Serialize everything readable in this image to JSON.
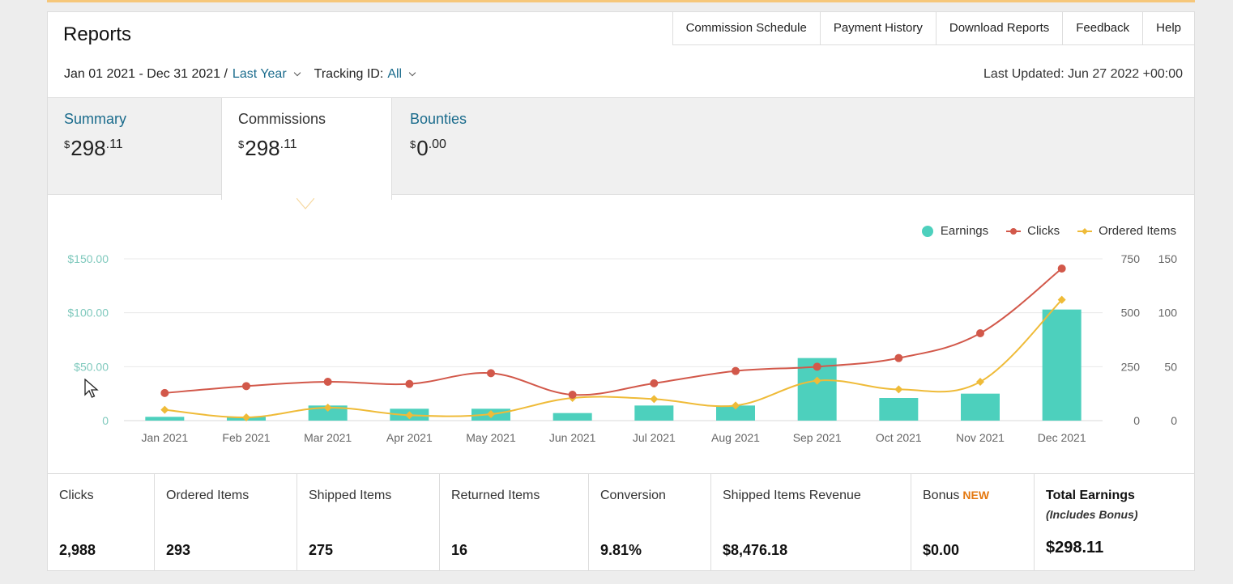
{
  "page": {
    "title": "Reports",
    "nav": [
      "Commission Schedule",
      "Payment History",
      "Download Reports",
      "Feedback",
      "Help"
    ],
    "date_range": "Jan 01 2021 - Dec 31 2021 /",
    "period": "Last Year",
    "tracking_label": "Tracking ID:",
    "tracking_value": "All",
    "last_updated": "Last Updated: Jun 27 2022 +00:00"
  },
  "tabs": [
    {
      "label": "Summary",
      "currency": "$",
      "whole": "298",
      "cents": ".11"
    },
    {
      "label": "Commissions",
      "currency": "$",
      "whole": "298",
      "cents": ".11"
    },
    {
      "label": "Bounties",
      "currency": "$",
      "whole": "0",
      "cents": ".00"
    }
  ],
  "colors": {
    "earnings": "#4dd0bd",
    "clicks": "#d2584a",
    "ordered": "#efbb38",
    "link": "#1a6b8c",
    "badge": "#e47911"
  },
  "chart_data": {
    "type": "bar",
    "categories": [
      "Jan 2021",
      "Feb 2021",
      "Mar 2021",
      "Apr 2021",
      "May 2021",
      "Jun 2021",
      "Jul 2021",
      "Aug 2021",
      "Sep 2021",
      "Oct 2021",
      "Nov 2021",
      "Dec 2021"
    ],
    "series": [
      {
        "name": "Earnings",
        "type": "bar",
        "axis": "left",
        "values": [
          3.5,
          3.5,
          14,
          11,
          11,
          7,
          14,
          14,
          58,
          21,
          25,
          103
        ]
      },
      {
        "name": "Clicks",
        "type": "line",
        "axis": "right1",
        "values": [
          128,
          160,
          180,
          170,
          220,
          120,
          173,
          230,
          250,
          290,
          405,
          705
        ]
      },
      {
        "name": "Ordered Items",
        "type": "line",
        "axis": "right2",
        "values": [
          10,
          3,
          12,
          5,
          6,
          21,
          20,
          14,
          37,
          29,
          36,
          112
        ]
      }
    ],
    "left_axis": {
      "ticks": [
        "$150.00",
        "$100.00",
        "$50.00",
        "0"
      ],
      "range": [
        0,
        150
      ]
    },
    "right_axis_1": {
      "ticks": [
        "750",
        "500",
        "250",
        "0"
      ],
      "range": [
        0,
        750
      ]
    },
    "right_axis_2": {
      "ticks": [
        "150",
        "100",
        "50",
        "0"
      ],
      "range": [
        0,
        150
      ]
    },
    "legend": "top-right",
    "grid": true
  },
  "stats": [
    {
      "label": "Clicks",
      "value": "2,988"
    },
    {
      "label": "Ordered Items",
      "value": "293"
    },
    {
      "label": "Shipped Items",
      "value": "275"
    },
    {
      "label": "Returned Items",
      "value": "16"
    },
    {
      "label": "Conversion",
      "value": "9.81%"
    },
    {
      "label": "Shipped Items Revenue",
      "value": "$8,476.18"
    },
    {
      "label": "Bonus",
      "badge": "NEW",
      "value": "$0.00"
    },
    {
      "label": "Total Earnings",
      "sub": "(Includes Bonus)",
      "value": "$298.11"
    }
  ]
}
